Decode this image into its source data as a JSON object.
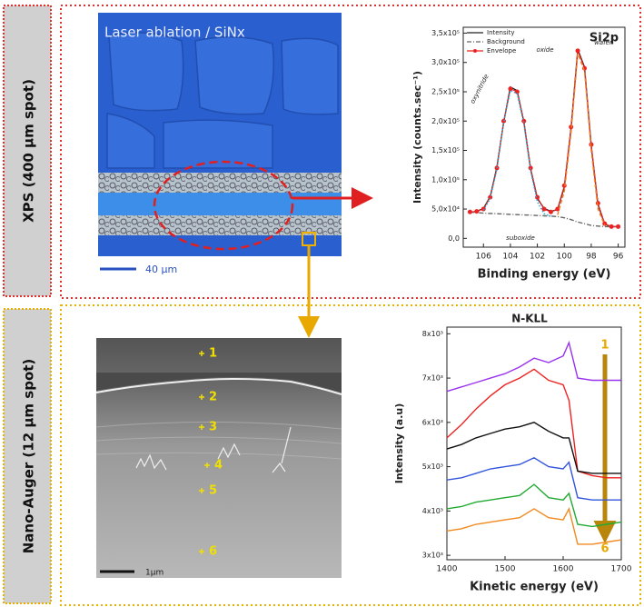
{
  "panels": {
    "xps_label": "XPS (400 µm spot)",
    "auger_label": "Nano-Auger (12 µm spot)",
    "optical_image": {
      "caption": "Laser ablation / SiNx",
      "scale": "40 µm"
    },
    "sem_image": {
      "points": [
        "1",
        "2",
        "3",
        "4",
        "5",
        "6"
      ],
      "scale": "1µm"
    }
  },
  "chart_data": [
    {
      "type": "line",
      "title": "Si2p",
      "xlabel": "Binding energy (eV)",
      "ylabel": "Intensity (counts.sec⁻¹)",
      "x": [
        107,
        106.5,
        106,
        105.5,
        105,
        104.5,
        104,
        103.5,
        103,
        102.5,
        102,
        101.5,
        101,
        100.5,
        100,
        99.5,
        99,
        98.5,
        98,
        97.5,
        97,
        96.5,
        96
      ],
      "xlim": [
        107.5,
        95.5
      ],
      "xticks": [
        106,
        104,
        102,
        100,
        98,
        96
      ],
      "ylim": [
        -15000,
        360000
      ],
      "yticks": [
        {
          "value": 0,
          "label": "0,0"
        },
        {
          "value": 50000,
          "label": "5,0x10⁴"
        },
        {
          "value": 100000,
          "label": "1,0x10⁵"
        },
        {
          "value": 150000,
          "label": "1,5x10⁵"
        },
        {
          "value": 200000,
          "label": "2,0x10⁵"
        },
        {
          "value": 250000,
          "label": "2,5x10⁵"
        },
        {
          "value": 300000,
          "label": "3,0x10⁵"
        },
        {
          "value": 350000,
          "label": "3,5x10⁵"
        }
      ],
      "legend": "upper left",
      "annotations": [
        "oxynitride",
        "oxide",
        "wafer",
        "suboxide"
      ],
      "series": [
        {
          "name": "Intensity",
          "color": "#222222",
          "style": "solid",
          "values": [
            44000,
            46000,
            51000,
            71000,
            122000,
            198000,
            258000,
            252000,
            198000,
            118000,
            68000,
            51000,
            46000,
            49000,
            88000,
            188000,
            322000,
            292000,
            158000,
            58000,
            24000,
            20000,
            20000
          ]
        },
        {
          "name": "Background",
          "color": "#666666",
          "style": "dashdot",
          "values": [
            45000,
            44000,
            43000,
            42500,
            42000,
            41500,
            41000,
            40500,
            40000,
            39500,
            39000,
            38500,
            38000,
            37000,
            35000,
            32000,
            28000,
            25000,
            22000,
            21000,
            20000,
            20000,
            20000
          ]
        },
        {
          "name": "Envelope",
          "color": "#ee2222",
          "style": "solid",
          "marker": "circle",
          "values": [
            45000,
            46000,
            50000,
            70000,
            120000,
            200000,
            255000,
            250000,
            200000,
            120000,
            70000,
            50000,
            45000,
            50000,
            90000,
            190000,
            320000,
            290000,
            160000,
            60000,
            25000,
            20000,
            20000
          ]
        },
        {
          "color": "#22aadd",
          "style": "dot",
          "values": [
            null,
            null,
            48000,
            68000,
            118000,
            198000,
            252000,
            247000,
            195000,
            115000,
            62000,
            42000,
            38000,
            null,
            null,
            null,
            null,
            null,
            null,
            null,
            null,
            null,
            null
          ]
        },
        {
          "color": "#f08020",
          "style": "dash",
          "values": [
            null,
            null,
            null,
            null,
            null,
            null,
            null,
            null,
            null,
            null,
            null,
            null,
            null,
            40000,
            80000,
            180000,
            315000,
            285000,
            150000,
            50000,
            22000,
            null,
            null
          ]
        }
      ]
    },
    {
      "type": "line",
      "title": "N-KLL",
      "xlabel": "Kinetic energy (eV)",
      "ylabel": "Intensity (a.u)",
      "x": [
        1400,
        1425,
        1450,
        1475,
        1500,
        1525,
        1550,
        1575,
        1600,
        1610,
        1625,
        1650,
        1675,
        1700
      ],
      "xlim": [
        1400,
        1700
      ],
      "xticks": [
        1400,
        1500,
        1600,
        1700
      ],
      "ylim": [
        2900,
        8150
      ],
      "yticks": [
        {
          "value": 3000,
          "label": "3x10³"
        },
        {
          "value": 4000,
          "label": "4x10³"
        },
        {
          "value": 5000,
          "label": "5x10³"
        },
        {
          "value": 6000,
          "label": "6x10³"
        },
        {
          "value": 7000,
          "label": "7x10³"
        },
        {
          "value": 8000,
          "label": "8x10³"
        }
      ],
      "annotations": [
        "1",
        "6"
      ],
      "series": [
        {
          "color": "#9933ee",
          "style": "solid",
          "values": [
            6700,
            6800,
            6900,
            7000,
            7100,
            7250,
            7450,
            7350,
            7500,
            7800,
            7000,
            6950,
            6950,
            6950
          ]
        },
        {
          "color": "#ee2222",
          "style": "solid",
          "values": [
            5650,
            5950,
            6300,
            6600,
            6850,
            7000,
            7200,
            6950,
            6850,
            6500,
            4900,
            4800,
            4750,
            4750
          ]
        },
        {
          "color": "#111111",
          "style": "solid",
          "values": [
            5400,
            5500,
            5650,
            5750,
            5850,
            5900,
            6000,
            5800,
            5650,
            5650,
            4900,
            4850,
            4850,
            4850
          ]
        },
        {
          "color": "#3355dd",
          "style": "solid",
          "values": [
            4700,
            4750,
            4850,
            4950,
            5000,
            5050,
            5200,
            5000,
            4950,
            5100,
            4300,
            4250,
            4250,
            4250
          ]
        },
        {
          "color": "#22aa33",
          "style": "solid",
          "values": [
            4050,
            4100,
            4200,
            4250,
            4300,
            4350,
            4600,
            4300,
            4250,
            4400,
            3700,
            3650,
            3700,
            3750
          ]
        },
        {
          "color": "#f08a20",
          "style": "solid",
          "values": [
            3550,
            3600,
            3700,
            3750,
            3800,
            3850,
            4050,
            3850,
            3800,
            4050,
            3250,
            3250,
            3300,
            3350
          ]
        }
      ]
    }
  ]
}
